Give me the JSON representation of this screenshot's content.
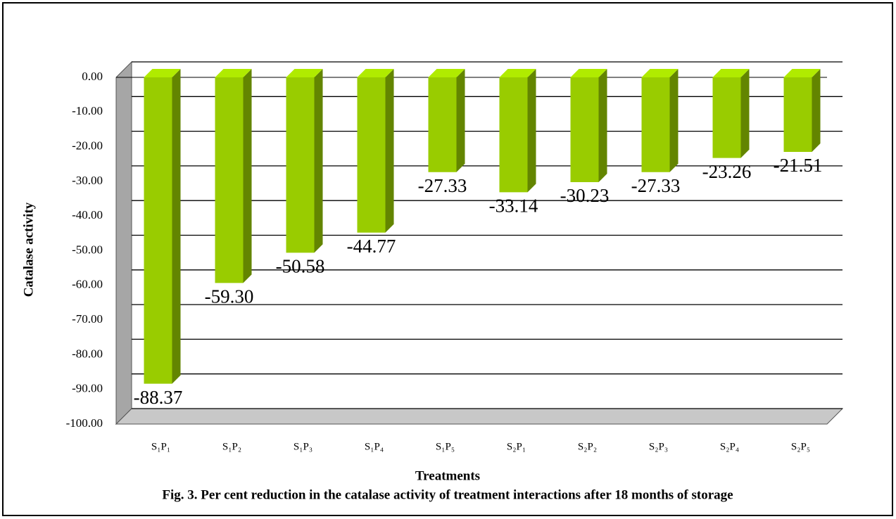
{
  "chart_data": {
    "type": "bar",
    "title": "Fig. 3. Per cent reduction in the catalase activity of treatment interactions after 18 months of storage",
    "x_label": "Treatments",
    "y_label": "Catalase activity",
    "categories": [
      "S₁P₁",
      "S₁P₂",
      "S₁P₃",
      "S₁P₄",
      "S₁P₅",
      "S₂P₁",
      "S₂P₂",
      "S₂P₃",
      "S₂P₄",
      "S₂P₅"
    ],
    "values": [
      -88.37,
      -59.3,
      -50.58,
      -44.77,
      -27.33,
      -33.14,
      -30.23,
      -27.33,
      -23.26,
      -21.51
    ],
    "value_labels": [
      "-88.37",
      "-59.30",
      "-50.58",
      "-44.77",
      "-27.33",
      "-33.14",
      "-30.23",
      "-27.33",
      "-23.26",
      "-21.51"
    ],
    "color": "#99cc00",
    "ylim": [
      -100,
      0
    ],
    "yticks": [
      {
        "value": 0,
        "label": "0.00"
      },
      {
        "value": -10,
        "label": "-10.00"
      },
      {
        "value": -20,
        "label": "-20.00"
      },
      {
        "value": -30,
        "label": "-30.00"
      },
      {
        "value": -40,
        "label": "-40.00"
      },
      {
        "value": -50,
        "label": "-50.00"
      },
      {
        "value": -60,
        "label": "-60.00"
      },
      {
        "value": -70,
        "label": "-70.00"
      },
      {
        "value": -80,
        "label": "-80.00"
      },
      {
        "value": -90,
        "label": "-90.00"
      },
      {
        "value": -100,
        "label": "-100.00"
      }
    ],
    "grid": true
  }
}
